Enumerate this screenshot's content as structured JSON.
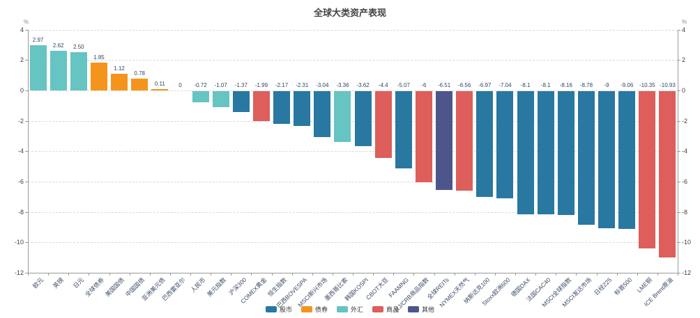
{
  "page": {
    "title": "全球大类资产表现"
  },
  "chart_data": {
    "type": "bar",
    "title": "全球大类资产表现",
    "unit_label": "%",
    "ylim": [
      -12,
      4
    ],
    "y_ticks": [
      4,
      2,
      0,
      -2,
      -4,
      -6,
      -8,
      -10,
      -12
    ],
    "grid": "dashed-horizontal",
    "x_label_rotation": 45,
    "legend_position": "bottom-center",
    "legend": [
      {
        "label": "股市",
        "key": "equity"
      },
      {
        "label": "债券",
        "key": "bond"
      },
      {
        "label": "外汇",
        "key": "fx"
      },
      {
        "label": "商品",
        "key": "commodity"
      },
      {
        "label": "其他",
        "key": "other"
      }
    ],
    "category_colors": {
      "equity": "#2878a2",
      "bond": "#f5941d",
      "fx": "#66c4c2",
      "commodity": "#dd5e5b",
      "other": "#4d568c"
    },
    "bars": [
      {
        "label": "欧元",
        "value": 2.97,
        "display": "2.97",
        "category": "fx"
      },
      {
        "label": "英镑",
        "value": 2.62,
        "display": "2.62",
        "category": "fx"
      },
      {
        "label": "日元",
        "value": 2.5,
        "display": "2.50",
        "category": "fx"
      },
      {
        "label": "全球债券",
        "value": 1.85,
        "display": "1.85",
        "category": "bond"
      },
      {
        "label": "美国国债",
        "value": 1.12,
        "display": "1.12",
        "category": "bond"
      },
      {
        "label": "中国国债",
        "value": 0.78,
        "display": "0.78",
        "category": "bond"
      },
      {
        "label": "亚洲美元债",
        "value": 0.11,
        "display": "0.11",
        "category": "bond"
      },
      {
        "label": "巴西雷亚尔",
        "value": 0,
        "display": "0",
        "category": "fx"
      },
      {
        "label": "人民币",
        "value": -0.72,
        "display": "-0.72",
        "category": "fx"
      },
      {
        "label": "美元指数",
        "value": -1.07,
        "display": "-1.07",
        "category": "fx"
      },
      {
        "label": "沪深300",
        "value": -1.37,
        "display": "-1.37",
        "category": "equity"
      },
      {
        "label": "COMEX黄金",
        "value": -1.99,
        "display": "-1.99",
        "category": "commodity"
      },
      {
        "label": "恒生指数",
        "value": -2.17,
        "display": "-2.17",
        "category": "equity"
      },
      {
        "label": "巴西BOVESPA",
        "value": -2.31,
        "display": "-2.31",
        "category": "equity"
      },
      {
        "label": "MSCI新兴市场",
        "value": -3.04,
        "display": "-3.04",
        "category": "equity"
      },
      {
        "label": "墨西哥比索",
        "value": -3.36,
        "display": "-3.36",
        "category": "fx"
      },
      {
        "label": "韩国KOSPI",
        "value": -3.62,
        "display": "-3.62",
        "category": "equity"
      },
      {
        "label": "CBOT大豆",
        "value": -4.4,
        "display": "-4.4",
        "category": "commodity"
      },
      {
        "label": "FAAMNG",
        "value": -5.07,
        "display": "-5.07",
        "category": "equity"
      },
      {
        "label": "RJ/CRB商品指数",
        "value": -6,
        "display": "-6",
        "category": "commodity"
      },
      {
        "label": "全球REITs",
        "value": -6.51,
        "display": "-6.51",
        "category": "other"
      },
      {
        "label": "NYMEX天然气",
        "value": -6.56,
        "display": "-6.56",
        "category": "commodity"
      },
      {
        "label": "纳斯达克100",
        "value": -6.97,
        "display": "-6.97",
        "category": "equity"
      },
      {
        "label": "Stoxx欧洲600",
        "value": -7.04,
        "display": "-7.04",
        "category": "equity"
      },
      {
        "label": "德国DAX",
        "value": -8.1,
        "display": "-8.1",
        "category": "equity"
      },
      {
        "label": "法国CAC40",
        "value": -8.1,
        "display": "-8.1",
        "category": "equity"
      },
      {
        "label": "MSCI全球指数",
        "value": -8.16,
        "display": "-8.16",
        "category": "equity"
      },
      {
        "label": "MSCI发达市场",
        "value": -8.78,
        "display": "-8.78",
        "category": "equity"
      },
      {
        "label": "日经225",
        "value": -9,
        "display": "-9",
        "category": "equity"
      },
      {
        "label": "标普500",
        "value": -9.06,
        "display": "-9.06",
        "category": "equity"
      },
      {
        "label": "LME铜",
        "value": -10.35,
        "display": "-10.35",
        "category": "commodity"
      },
      {
        "label": "ICE Brent原油",
        "value": -10.93,
        "display": "-10.93",
        "category": "commodity"
      }
    ]
  }
}
